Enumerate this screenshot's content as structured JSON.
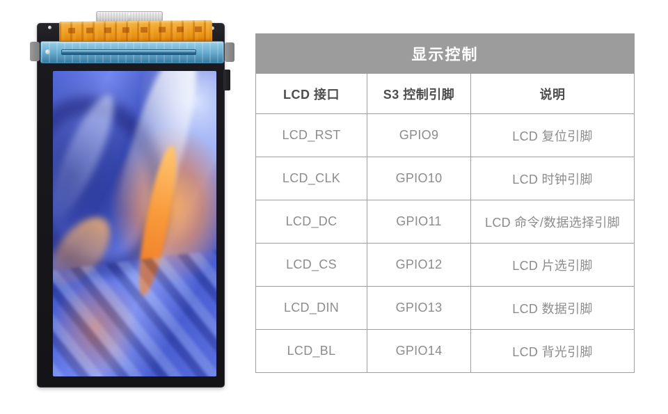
{
  "palette": {
    "title_bg": "#9c9c9c",
    "title_text": "#ffffff",
    "header_text": "#4d4d4d",
    "cell_text": "#8c8c8c",
    "table_border": "#9e9e9e",
    "screen_blue": "#5166d9",
    "screen_orange": "#f99a3c"
  },
  "table": {
    "title": "显示控制",
    "headers": [
      "LCD 接口",
      "S3 控制引脚",
      "说明"
    ],
    "rows": [
      {
        "interface": "LCD_RST",
        "pin": "GPIO9",
        "description": "LCD 复位引脚"
      },
      {
        "interface": "LCD_CLK",
        "pin": "GPIO10",
        "description": "LCD 时钟引脚"
      },
      {
        "interface": "LCD_DC",
        "pin": "GPIO11",
        "description": "LCD 命令/数据选择引脚"
      },
      {
        "interface": "LCD_CS",
        "pin": "GPIO12",
        "description": "LCD 片选引脚"
      },
      {
        "interface": "LCD_DIN",
        "pin": "GPIO13",
        "description": "LCD 数据引脚"
      },
      {
        "interface": "LCD_BL",
        "pin": "GPIO14",
        "description": "LCD 背光引脚"
      }
    ]
  }
}
